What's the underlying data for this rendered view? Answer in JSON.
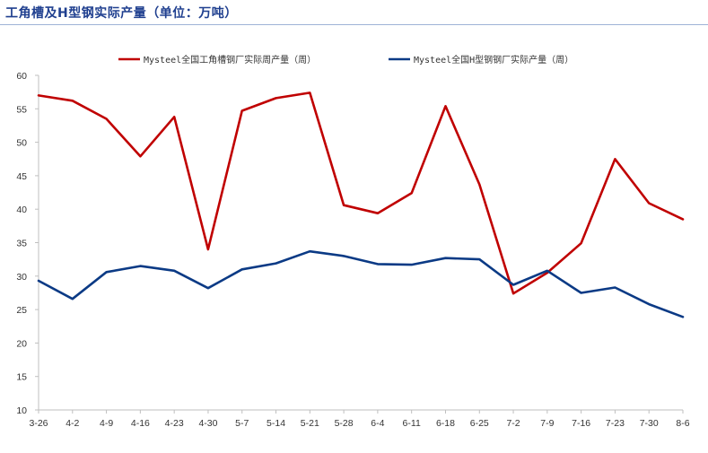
{
  "title": "工角槽及H型钢实际产量（单位：万吨）",
  "colors": {
    "title": "#1f3f8f",
    "axis": "#bfbfbf",
    "series1": "#c00000",
    "series2": "#0b3a85"
  },
  "chart_data": {
    "type": "line",
    "categories": [
      "3-26",
      "4-2",
      "4-9",
      "4-16",
      "4-23",
      "4-30",
      "5-7",
      "5-14",
      "5-21",
      "5-28",
      "6-4",
      "6-11",
      "6-18",
      "6-25",
      "7-2",
      "7-9",
      "7-16",
      "7-23",
      "7-30",
      "8-6"
    ],
    "yticks": [
      "10",
      "15",
      "20",
      "25",
      "30",
      "35",
      "40",
      "45",
      "50",
      "55",
      "60"
    ],
    "ylim": [
      10,
      60
    ],
    "grid": false,
    "legend_position": "top",
    "series": [
      {
        "name": "Mysteel全国工角槽钢厂实际周产量（周）",
        "values": [
          57.0,
          56.2,
          53.5,
          47.9,
          53.8,
          34.0,
          54.7,
          56.6,
          57.4,
          40.6,
          39.4,
          42.4,
          55.4,
          43.7,
          27.4,
          30.5,
          34.9,
          47.5,
          40.9,
          38.5
        ]
      },
      {
        "name": "Mysteel全国H型钢钢厂实际产量（周）",
        "values": [
          29.3,
          26.6,
          30.6,
          31.5,
          30.8,
          28.2,
          31.0,
          31.9,
          33.7,
          33.0,
          31.8,
          31.7,
          32.7,
          32.5,
          28.7,
          30.8,
          27.5,
          28.3,
          25.8,
          23.9
        ]
      }
    ]
  }
}
